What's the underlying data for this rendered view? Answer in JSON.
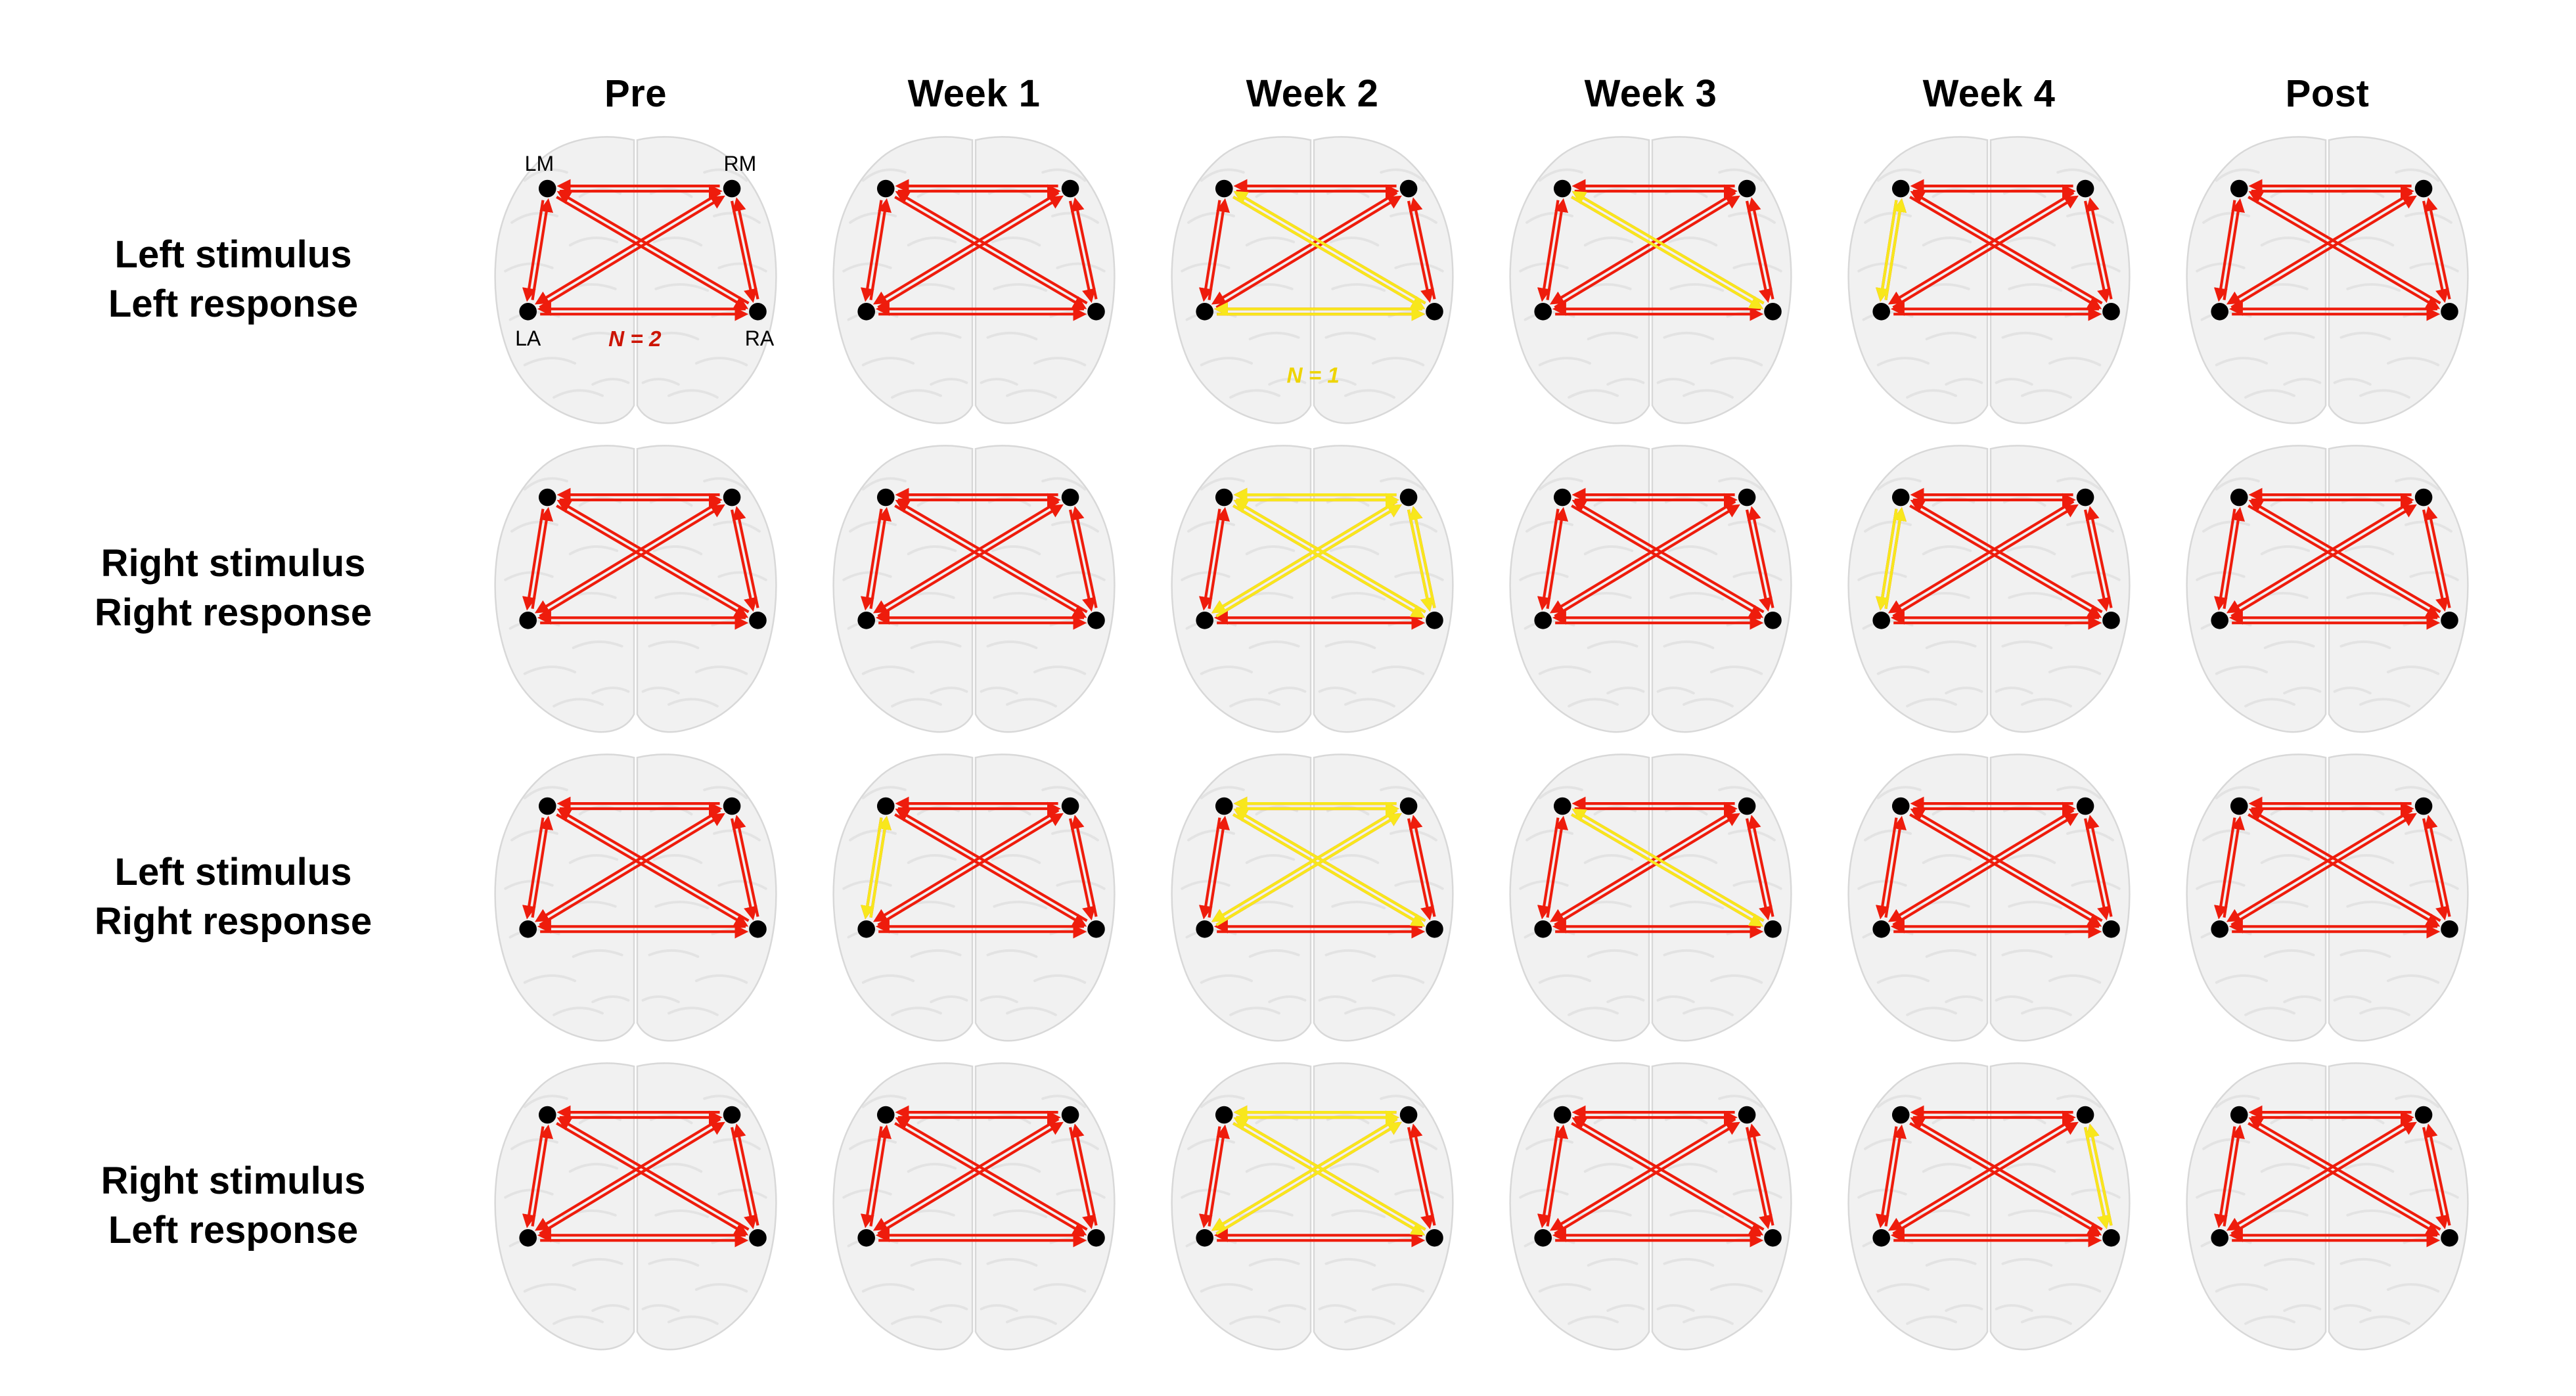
{
  "figure": {
    "columns": [
      "Pre",
      "Week 1",
      "Week 2",
      "Week 3",
      "Week 4",
      "Post"
    ],
    "rows": [
      {
        "label_lines": [
          "Left stimulus",
          "Left response"
        ],
        "cells": [
          {
            "yellow_edges": [],
            "show_node_labels": true,
            "legend": "red"
          },
          {
            "yellow_edges": []
          },
          {
            "yellow_edges": [
              "LM-RA",
              "LA-RA"
            ],
            "legend": "yellow"
          },
          {
            "yellow_edges": [
              "LM-RA"
            ]
          },
          {
            "yellow_edges": [
              "LM-LA"
            ]
          },
          {
            "yellow_edges": []
          }
        ]
      },
      {
        "label_lines": [
          "Right stimulus",
          "Right response"
        ],
        "cells": [
          {
            "yellow_edges": []
          },
          {
            "yellow_edges": []
          },
          {
            "yellow_edges": [
              "LM-RM",
              "LM-RA",
              "RM-LA",
              "RM-RA"
            ]
          },
          {
            "yellow_edges": []
          },
          {
            "yellow_edges": [
              "LM-LA"
            ]
          },
          {
            "yellow_edges": []
          }
        ]
      },
      {
        "label_lines": [
          "Left stimulus",
          "Right response"
        ],
        "cells": [
          {
            "yellow_edges": []
          },
          {
            "yellow_edges": [
              "LM-LA"
            ]
          },
          {
            "yellow_edges": [
              "LM-RM",
              "LM-RA",
              "RM-LA"
            ]
          },
          {
            "yellow_edges": [
              "LM-RA"
            ]
          },
          {
            "yellow_edges": []
          },
          {
            "yellow_edges": []
          }
        ]
      },
      {
        "label_lines": [
          "Right stimulus",
          "Left response"
        ],
        "cells": [
          {
            "yellow_edges": []
          },
          {
            "yellow_edges": []
          },
          {
            "yellow_edges": [
              "LM-RM",
              "LM-RA",
              "RM-LA"
            ]
          },
          {
            "yellow_edges": []
          },
          {
            "yellow_edges": [
              "RM-RA"
            ]
          },
          {
            "yellow_edges": []
          }
        ]
      }
    ],
    "nodes": [
      {
        "id": "LM",
        "label": "LM"
      },
      {
        "id": "RM",
        "label": "RM"
      },
      {
        "id": "LA",
        "label": "LA"
      },
      {
        "id": "RA",
        "label": "RA"
      }
    ],
    "edges": [
      "LM-RM",
      "LA-RA",
      "LM-LA",
      "RM-RA",
      "LM-RA",
      "RM-LA"
    ],
    "legend": {
      "red": {
        "text": "N = 2",
        "color": "#cc1404"
      },
      "yellow": {
        "text": "N = 1",
        "color": "#eed400"
      }
    },
    "colors": {
      "arrow_red": "#ee1c0c",
      "arrow_yellow": "#f8e71c",
      "node": "#000000",
      "brain_fill": "#f1f1f1",
      "brain_stroke": "#d8d8d8",
      "gyri": "#e3e3e3",
      "label_text": "#000000"
    }
  }
}
